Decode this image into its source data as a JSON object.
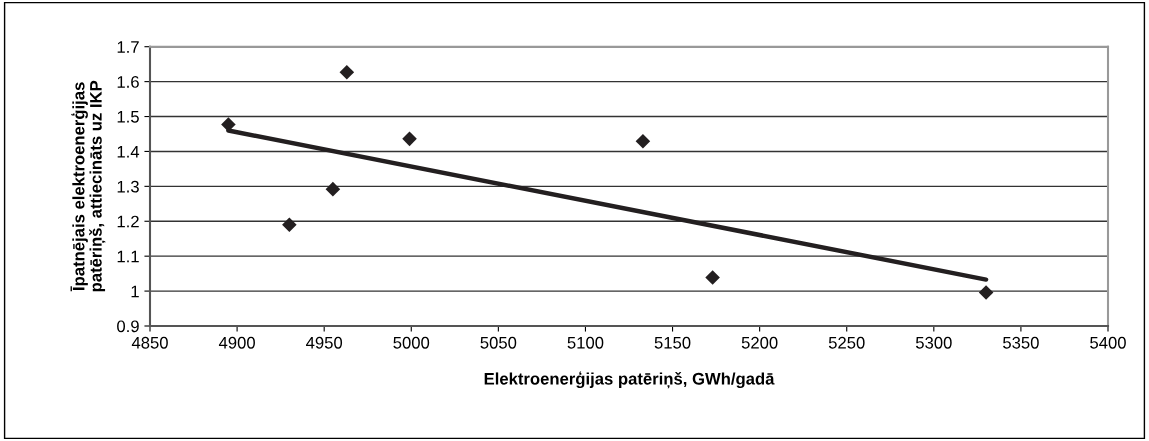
{
  "chart_data": {
    "type": "scatter",
    "xlabel": "Elektroenerģijas patēriņš, GWh/gadā",
    "ylabel": "Īpatnējais elektroenerģijas\npatēriņš, attiecināts uz IKP",
    "series": [
      {
        "color": "#231f20",
        "marker": "diamond",
        "x": [
          4895,
          4930,
          4955,
          4963,
          4999,
          5133,
          5173,
          5330
        ],
        "values": [
          1.477,
          1.19,
          1.292,
          1.627,
          1.436,
          1.429,
          1.039,
          0.996
        ]
      },
      {
        "type": "line",
        "color": "#231f20",
        "marker": "none",
        "x": [
          4895,
          5330
        ],
        "values": [
          1.46,
          1.033
        ]
      }
    ],
    "xlim": [
      4850,
      5400
    ],
    "xticks": [
      4850,
      4900,
      4950,
      5000,
      5050,
      5100,
      5150,
      5200,
      5250,
      5300,
      5350,
      5400
    ],
    "ylim": [
      0.9,
      1.7
    ],
    "yticks": [
      {
        "value": 0.9,
        "label": "0.9"
      },
      {
        "value": 1.0,
        "label": "1"
      },
      1.1,
      1.2,
      1.3,
      1.4,
      1.5,
      1.6,
      1.7
    ],
    "grid": "y",
    "legend": false
  }
}
